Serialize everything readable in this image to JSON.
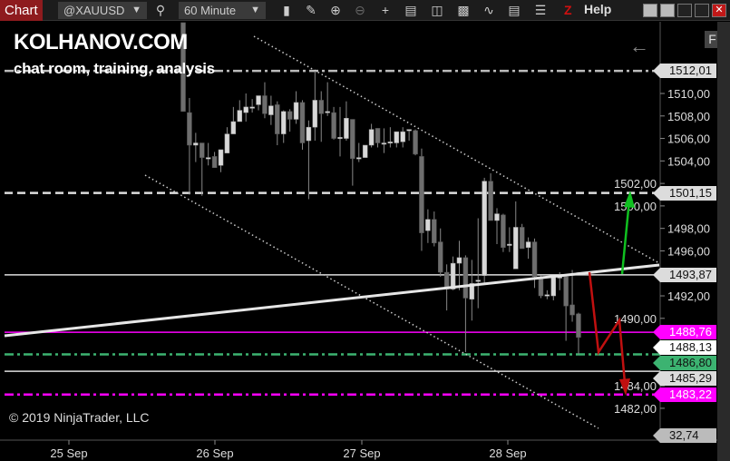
{
  "toolbar": {
    "tab": "Chart",
    "instrument": "@XAUUSD",
    "interval": "60 Minute",
    "help": "Help",
    "z_label": "Z",
    "icons": [
      "search-icon",
      "bar-type-icon",
      "pencil-icon",
      "zoom-in-icon",
      "zoom-out-icon",
      "crosshair-icon",
      "data-box-icon",
      "strategy-icon",
      "indicator-icon",
      "drawing-tool-icon",
      "properties-icon",
      "list-icon"
    ]
  },
  "overlay": {
    "brand": "KOLHANOV.COM",
    "tagline": "chat room, training, analysis",
    "copyright": "© 2019 NinjaTrader, LLC",
    "f_button": "F",
    "back_icon": "←"
  },
  "chart_data": {
    "type": "candlestick",
    "y_ticks": [
      "1510,00",
      "1508,00",
      "1506,00",
      "1504,00",
      "1502,00",
      "1500,00",
      "1498,00",
      "1496,00",
      "1492,00",
      "1490,00",
      "1484,00",
      "1482,00"
    ],
    "y_tick_values": [
      1510,
      1508,
      1506,
      1504,
      1502,
      1500,
      1498,
      1496,
      1492,
      1490,
      1484,
      1482
    ],
    "x_ticks": [
      "25 Sep",
      "26 Sep",
      "27 Sep",
      "28 Sep"
    ],
    "ylim": [
      1477.5,
      1518
    ],
    "colors": {
      "up": "#d8d8d8",
      "down": "#6e6e6e",
      "magenta": "#ff00ff",
      "green": "#3cb371",
      "arrow_up": "#10c020",
      "arrow_down": "#c01010"
    },
    "levels": [
      {
        "label": "1512,01",
        "value": 1512.01,
        "style": "dashdot",
        "color": "#bbbbbb",
        "label_bg": "#dcdcdc"
      },
      {
        "label": "1501,15",
        "value": 1501.15,
        "style": "dashed",
        "color": "#dddddd",
        "label_bg": "#dcdcdc"
      },
      {
        "label": "1493,87",
        "value": 1493.87,
        "style": "solid",
        "color": "#dddddd",
        "label_bg": "#dcdcdc"
      },
      {
        "label": "1488,76",
        "value": 1488.76,
        "style": "solid",
        "color": "#ff00ff",
        "label_bg": "#ff00ff"
      },
      {
        "label": "1488,13",
        "value": 1488.13,
        "style": "none",
        "color": "#ffffff",
        "label_bg": "#ffffff"
      },
      {
        "label": "1486,80",
        "value": 1486.8,
        "style": "dashdot",
        "color": "#3cb371",
        "label_bg": "#3cb371"
      },
      {
        "label": "1485,29",
        "value": 1485.29,
        "style": "solid",
        "color": "#dddddd",
        "label_bg": "#dcdcdc"
      },
      {
        "label": "1483,22",
        "value": 1483.22,
        "style": "dashdot",
        "color": "#ff00ff",
        "label_bg": "#ff00ff"
      },
      {
        "label": "32,74",
        "value": 1479.6,
        "style": "none",
        "color": "#bbbbbb",
        "label_bg": "#bbbbbb"
      }
    ],
    "candles": [
      [
        1516.3,
        1516.3,
        1508.4,
        1508.4
      ],
      [
        1508.3,
        1509.6,
        1501.0,
        1505.4
      ],
      [
        1505.4,
        1506.5,
        1503.9,
        1505.6
      ],
      [
        1505.6,
        1505.6,
        1500.9,
        1504.3
      ],
      [
        1504.3,
        1505.6,
        1503.6,
        1504.3
      ],
      [
        1504.4,
        1504.8,
        1503.4,
        1503.4
      ],
      [
        1503.6,
        1505.0,
        1503.0,
        1505.0
      ],
      [
        1504.7,
        1507.0,
        1504.7,
        1506.4
      ],
      [
        1506.4,
        1508.8,
        1506.4,
        1507.5
      ],
      [
        1507.5,
        1509.4,
        1507.5,
        1508.5
      ],
      [
        1508.3,
        1510.0,
        1507.5,
        1508.8
      ],
      [
        1508.8,
        1509.5,
        1508.3,
        1508.8
      ],
      [
        1509.0,
        1509.8,
        1508.5,
        1509.8
      ],
      [
        1509.8,
        1511.0,
        1507.8,
        1508.2
      ],
      [
        1508.1,
        1509.8,
        1507.2,
        1508.9
      ],
      [
        1509.0,
        1509.3,
        1505.4,
        1506.4
      ],
      [
        1506.4,
        1508.5,
        1505.6,
        1508.4
      ],
      [
        1508.4,
        1508.6,
        1506.6,
        1507.7
      ],
      [
        1507.7,
        1510.2,
        1507.3,
        1509.2
      ],
      [
        1509.2,
        1509.4,
        1505.0,
        1505.6
      ],
      [
        1505.8,
        1507.6,
        1500.6,
        1507.0
      ],
      [
        1507.0,
        1512.0,
        1505.8,
        1509.4
      ],
      [
        1509.4,
        1510.2,
        1505.7,
        1508.2
      ],
      [
        1508.4,
        1511.0,
        1508.0,
        1508.4
      ],
      [
        1508.3,
        1508.8,
        1505.9,
        1506.0
      ],
      [
        1506.1,
        1508.8,
        1504.4,
        1506.1
      ],
      [
        1506.0,
        1509.3,
        1505.8,
        1507.8
      ],
      [
        1507.7,
        1507.7,
        1501.8,
        1504.2
      ],
      [
        1504.3,
        1505.6,
        1503.9,
        1504.3
      ],
      [
        1504.3,
        1505.4,
        1504.3,
        1505.4
      ],
      [
        1505.4,
        1507.3,
        1505.2,
        1506.8
      ],
      [
        1506.9,
        1506.9,
        1505.2,
        1505.6
      ],
      [
        1505.6,
        1506.9,
        1504.7,
        1505.6
      ],
      [
        1505.7,
        1507.0,
        1505.2,
        1505.7
      ],
      [
        1505.6,
        1506.6,
        1505.2,
        1506.6
      ],
      [
        1505.7,
        1507.0,
        1505.2,
        1506.6
      ],
      [
        1506.8,
        1506.8,
        1505.8,
        1506.8
      ],
      [
        1506.7,
        1506.8,
        1504.5,
        1504.6
      ],
      [
        1504.4,
        1505.1,
        1496.0,
        1497.6
      ],
      [
        1497.8,
        1499.7,
        1496.7,
        1498.8
      ],
      [
        1498.8,
        1499.5,
        1496.4,
        1496.7
      ],
      [
        1496.8,
        1498.0,
        1493.7,
        1494.1
      ],
      [
        1494.1,
        1494.8,
        1490.7,
        1492.6
      ],
      [
        1492.6,
        1495.5,
        1492.5,
        1494.9
      ],
      [
        1494.9,
        1496.9,
        1492.5,
        1495.4
      ],
      [
        1495.4,
        1495.6,
        1487.0,
        1491.8
      ],
      [
        1491.7,
        1495.2,
        1489.8,
        1493.1
      ],
      [
        1493.4,
        1498.9,
        1490.9,
        1493.4
      ],
      [
        1493.8,
        1502.5,
        1493.0,
        1502.2
      ],
      [
        1502.2,
        1502.9,
        1498.7,
        1498.7
      ],
      [
        1498.7,
        1499.8,
        1496.6,
        1499.3
      ],
      [
        1499.2,
        1499.3,
        1495.9,
        1496.3
      ],
      [
        1496.6,
        1498.1,
        1495.9,
        1496.6
      ],
      [
        1494.4,
        1500.4,
        1494.4,
        1498.1
      ],
      [
        1498.1,
        1498.4,
        1496.2,
        1496.2
      ],
      [
        1496.3,
        1497.2,
        1495.3,
        1496.8
      ],
      [
        1496.8,
        1497.1,
        1492.7,
        1493.7
      ],
      [
        1493.5,
        1493.8,
        1491.8,
        1492.0
      ],
      [
        1492.1,
        1492.5,
        1491.7,
        1492.1
      ],
      [
        1492.0,
        1493.8,
        1491.6,
        1493.7
      ],
      [
        1493.7,
        1494.1,
        1492.5,
        1493.7
      ],
      [
        1493.7,
        1493.8,
        1488.0,
        1491.1
      ],
      [
        1491.2,
        1494.3,
        1489.7,
        1490.3
      ],
      [
        1490.4,
        1490.5,
        1486.8,
        1488.3
      ]
    ]
  }
}
